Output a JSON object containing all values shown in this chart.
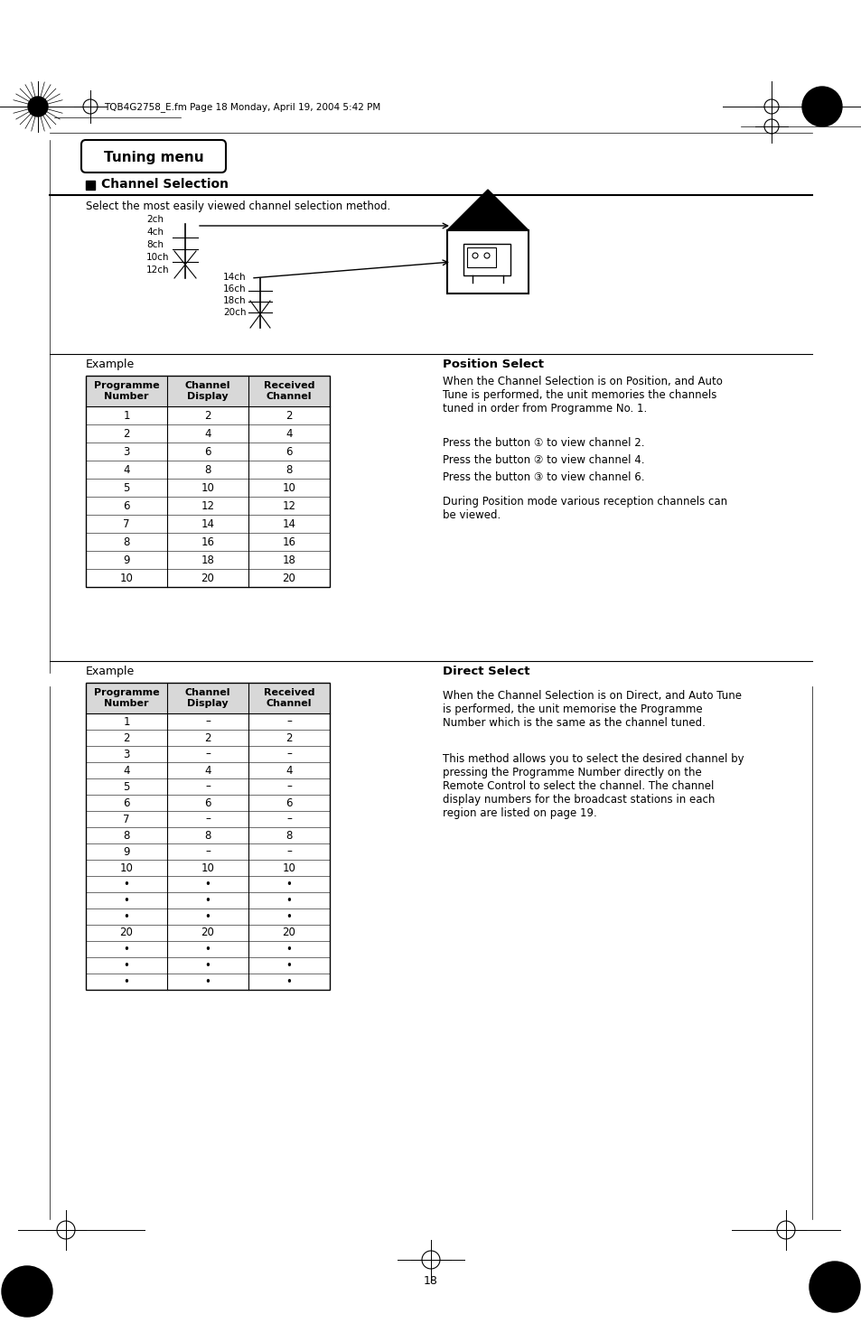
{
  "bg_color": "#ffffff",
  "page_number": "18",
  "header_text": "TQB4G2758_E.fm Page 18 Monday, April 19, 2004 5:42 PM",
  "title": "Tuning menu",
  "section_title": "Channel Selection",
  "section_desc": "Select the most easily viewed channel selection method.",
  "antenna_channels_left": [
    "2ch",
    "4ch",
    "8ch",
    "10ch",
    "12ch"
  ],
  "antenna_channels_right": [
    "14ch",
    "16ch",
    "18ch",
    "20ch"
  ],
  "example1_label": "Example",
  "table1_headers": [
    "Programme\nNumber",
    "Channel\nDisplay",
    "Received\nChannel"
  ],
  "table1_rows": [
    [
      "1",
      "2",
      "2"
    ],
    [
      "2",
      "4",
      "4"
    ],
    [
      "3",
      "6",
      "6"
    ],
    [
      "4",
      "8",
      "8"
    ],
    [
      "5",
      "10",
      "10"
    ],
    [
      "6",
      "12",
      "12"
    ],
    [
      "7",
      "14",
      "14"
    ],
    [
      "8",
      "16",
      "16"
    ],
    [
      "9",
      "18",
      "18"
    ],
    [
      "10",
      "20",
      "20"
    ]
  ],
  "position_select_title": "Position Select",
  "position_select_text": "When the Channel Selection is on Position, and Auto\nTune is performed, the unit memories the channels\ntuned in order from Programme No. 1.",
  "press_lines": [
    "Press the button ① to view channel 2.",
    "Press the button ② to view channel 4.",
    "Press the button ③ to view channel 6."
  ],
  "during_text": "During Position mode various reception channels can\nbe viewed.",
  "example2_label": "Example",
  "table2_headers": [
    "Programme\nNumber",
    "Channel\nDisplay",
    "Received\nChannel"
  ],
  "table2_rows": [
    [
      "1",
      "–",
      "–"
    ],
    [
      "2",
      "2",
      "2"
    ],
    [
      "3",
      "–",
      "–"
    ],
    [
      "4",
      "4",
      "4"
    ],
    [
      "5",
      "–",
      "–"
    ],
    [
      "6",
      "6",
      "6"
    ],
    [
      "7",
      "–",
      "–"
    ],
    [
      "8",
      "8",
      "8"
    ],
    [
      "9",
      "–",
      "–"
    ],
    [
      "10",
      "10",
      "10"
    ],
    [
      "•",
      "•",
      "•"
    ],
    [
      "•",
      "•",
      "•"
    ],
    [
      "•",
      "•",
      "•"
    ],
    [
      "20",
      "20",
      "20"
    ],
    [
      "•",
      "•",
      "•"
    ],
    [
      "•",
      "•",
      "•"
    ],
    [
      "•",
      "•",
      "•"
    ]
  ],
  "direct_select_title": "Direct Select",
  "direct_select_text1": "When the Channel Selection is on Direct, and Auto Tune\nis performed, the unit memorise the Programme\nNumber which is the same as the channel tuned.",
  "direct_select_text2": "This method allows you to select the desired channel by\npressing the Programme Number directly on the\nRemote Control to select the channel. The channel\ndisplay numbers for the broadcast stations in each\nregion are listed on page 19."
}
